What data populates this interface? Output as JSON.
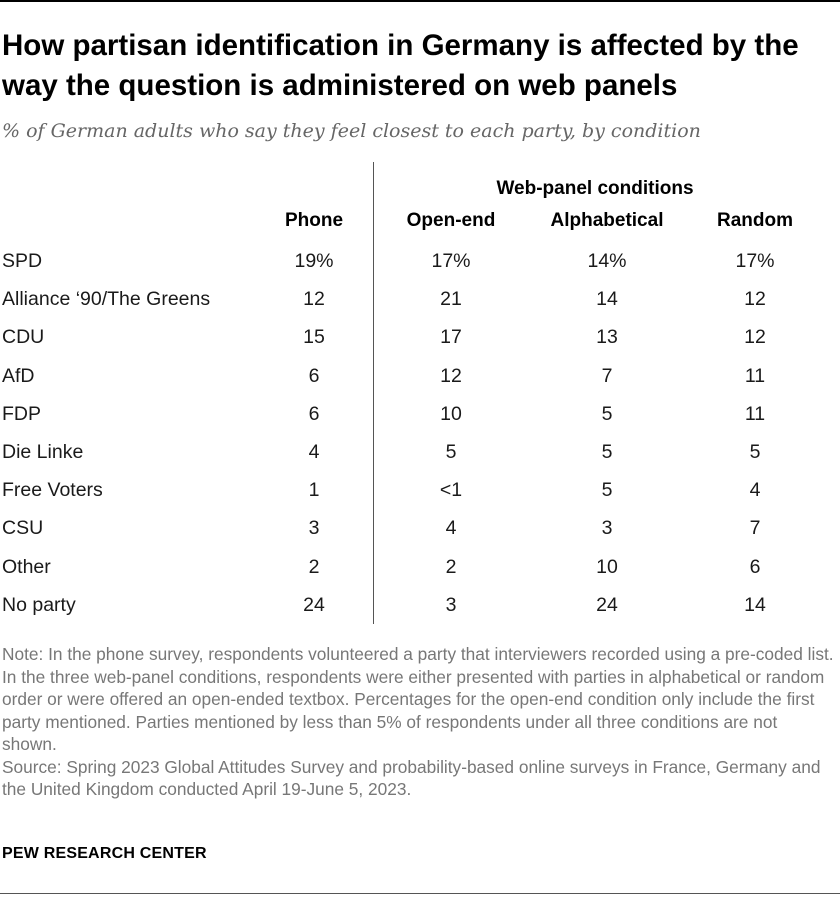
{
  "title": "How partisan identification in Germany is affected by the way the question is administered on web panels",
  "subtitle": "% of German adults who say they feel closest to each party, by condition",
  "chart_data": {
    "type": "table",
    "group_header": "Web-panel conditions",
    "columns": [
      "Phone",
      "Open-end",
      "Alphabetical",
      "Random"
    ],
    "rows": [
      {
        "label": "SPD",
        "values": [
          "19%",
          "17%",
          "14%",
          "17%"
        ]
      },
      {
        "label": "Alliance ‘90/The Greens",
        "values": [
          "12",
          "21",
          "14",
          "12"
        ]
      },
      {
        "label": "CDU",
        "values": [
          "15",
          "17",
          "13",
          "12"
        ]
      },
      {
        "label": "AfD",
        "values": [
          "6",
          "12",
          "7",
          "11"
        ]
      },
      {
        "label": "FDP",
        "values": [
          "6",
          "10",
          "5",
          "11"
        ]
      },
      {
        "label": "Die Linke",
        "values": [
          "4",
          "5",
          "5",
          "5"
        ]
      },
      {
        "label": "Free Voters",
        "values": [
          "1",
          "<1",
          "5",
          "4"
        ]
      },
      {
        "label": "CSU",
        "values": [
          "3",
          "4",
          "3",
          "7"
        ]
      },
      {
        "label": "Other",
        "values": [
          "2",
          "2",
          "10",
          "6"
        ]
      },
      {
        "label": "No party",
        "values": [
          "24",
          "3",
          "24",
          "14"
        ]
      }
    ]
  },
  "note": "Note: In the phone survey, respondents volunteered a party that interviewers recorded using a pre-coded list. In the three web-panel conditions, respondents were either presented with parties in alphabetical or random order or were offered an open-ended textbox. Percentages for the open-end condition only include the first party mentioned. Parties mentioned by less than 5% of respondents under all three conditions are not shown.",
  "source": "Source: Spring 2023 Global Attitudes Survey and probability-based online surveys in France, Germany and the United Kingdom conducted April 19-June 5, 2023.",
  "footer": "PEW RESEARCH CENTER",
  "colors": {
    "text": "#1a1a1a",
    "subtitle": "#666666",
    "note": "#777777",
    "divider": "#555555"
  }
}
